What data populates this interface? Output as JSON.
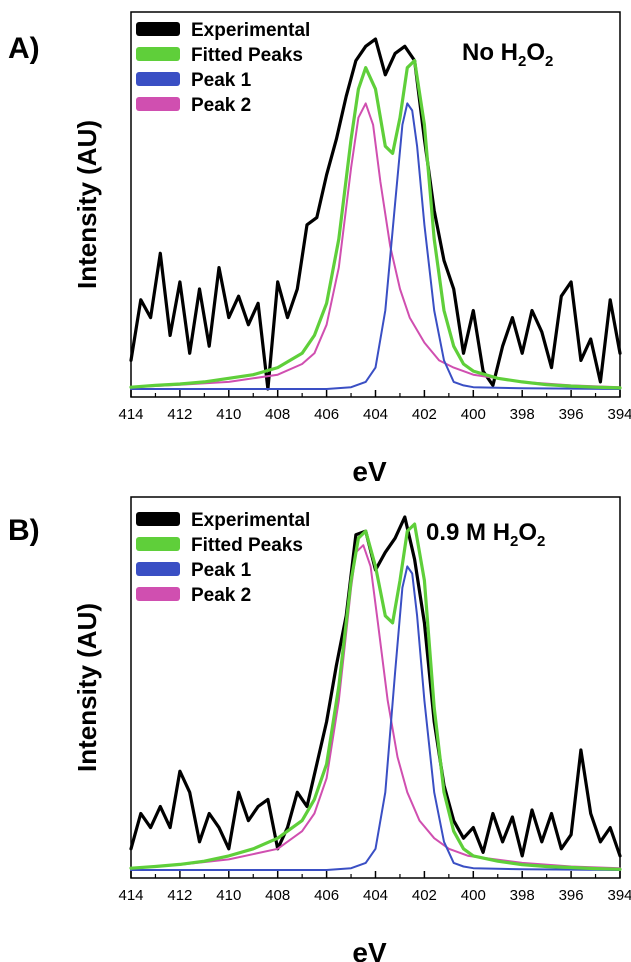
{
  "chart_data": [
    {
      "type": "line",
      "panel_label": "A)",
      "annotation": {
        "prefix": "No H",
        "sub1": "2",
        "mid": "O",
        "sub2": "2"
      },
      "xlabel": "eV",
      "ylabel": "Intensity (AU)",
      "xlim": [
        414,
        394
      ],
      "x_ticks": [
        414,
        412,
        410,
        408,
        406,
        404,
        402,
        400,
        398,
        396,
        394
      ],
      "legend": {
        "placement": "top-left",
        "entries": [
          {
            "label": "Experimental",
            "color": "#000000"
          },
          {
            "label": "Fitted Peaks",
            "color": "#5fcf3a"
          },
          {
            "label": "Peak 1",
            "color": "#3a4fc4"
          },
          {
            "label": "Peak 2",
            "color": "#d04fb0"
          }
        ]
      },
      "series": [
        {
          "name": "Experimental",
          "color": "#000000",
          "x": [
            414.0,
            413.6,
            413.2,
            412.8,
            412.4,
            412.0,
            411.6,
            411.2,
            410.8,
            410.4,
            410.0,
            409.6,
            409.2,
            408.8,
            408.4,
            408.0,
            407.6,
            407.2,
            406.8,
            406.4,
            406.0,
            405.6,
            405.2,
            404.8,
            404.4,
            404.0,
            403.6,
            403.2,
            402.8,
            402.4,
            402.0,
            401.6,
            401.2,
            400.8,
            400.4,
            400.0,
            399.6,
            399.2,
            398.8,
            398.4,
            398.0,
            397.6,
            397.2,
            396.8,
            396.4,
            396.0,
            395.6,
            395.2,
            394.8,
            394.4,
            394.0
          ],
          "y": [
            0.08,
            0.25,
            0.2,
            0.38,
            0.15,
            0.3,
            0.1,
            0.28,
            0.12,
            0.34,
            0.2,
            0.26,
            0.18,
            0.24,
            0.0,
            0.3,
            0.2,
            0.28,
            0.46,
            0.48,
            0.6,
            0.7,
            0.82,
            0.92,
            0.96,
            0.98,
            0.88,
            0.94,
            0.96,
            0.92,
            0.7,
            0.5,
            0.36,
            0.28,
            0.1,
            0.22,
            0.05,
            0.01,
            0.12,
            0.2,
            0.1,
            0.22,
            0.16,
            0.06,
            0.26,
            0.3,
            0.08,
            0.14,
            0.02,
            0.25,
            0.1
          ]
        },
        {
          "name": "Fitted Peaks",
          "color": "#5fcf3a",
          "x": [
            414.0,
            413.0,
            412.0,
            411.0,
            410.0,
            409.0,
            408.0,
            407.0,
            406.5,
            406.0,
            405.5,
            405.0,
            404.7,
            404.4,
            404.0,
            403.6,
            403.3,
            403.0,
            402.7,
            402.4,
            402.0,
            401.6,
            401.2,
            400.8,
            400.4,
            400.0,
            399.0,
            398.0,
            397.0,
            396.0,
            395.0,
            394.0
          ],
          "y": [
            0.005,
            0.01,
            0.014,
            0.02,
            0.03,
            0.04,
            0.06,
            0.1,
            0.15,
            0.24,
            0.42,
            0.7,
            0.84,
            0.9,
            0.84,
            0.68,
            0.66,
            0.76,
            0.9,
            0.92,
            0.74,
            0.42,
            0.22,
            0.12,
            0.07,
            0.05,
            0.03,
            0.02,
            0.012,
            0.008,
            0.005,
            0.003
          ]
        },
        {
          "name": "Peak 1",
          "color": "#3a4fc4",
          "x": [
            414.0,
            410.0,
            406.0,
            405.0,
            404.4,
            404.0,
            403.6,
            403.2,
            402.9,
            402.7,
            402.5,
            402.3,
            402.0,
            401.6,
            401.2,
            400.8,
            400.4,
            400.0,
            398.0,
            396.0,
            394.0
          ],
          "y": [
            0.0,
            0.0,
            0.0,
            0.005,
            0.02,
            0.06,
            0.22,
            0.52,
            0.74,
            0.8,
            0.78,
            0.68,
            0.46,
            0.22,
            0.08,
            0.02,
            0.01,
            0.005,
            0.002,
            0.001,
            0.0
          ]
        },
        {
          "name": "Peak 2",
          "color": "#d04fb0",
          "x": [
            414.0,
            412.0,
            410.0,
            408.0,
            407.0,
            406.5,
            406.0,
            405.5,
            405.0,
            404.7,
            404.4,
            404.1,
            403.8,
            403.4,
            403.0,
            402.6,
            402.0,
            401.4,
            400.8,
            400.0,
            398.0,
            396.0,
            394.0
          ],
          "y": [
            0.005,
            0.012,
            0.02,
            0.04,
            0.07,
            0.1,
            0.18,
            0.34,
            0.62,
            0.76,
            0.8,
            0.74,
            0.58,
            0.4,
            0.28,
            0.2,
            0.13,
            0.08,
            0.06,
            0.04,
            0.02,
            0.01,
            0.005
          ]
        }
      ]
    },
    {
      "type": "line",
      "panel_label": "B)",
      "annotation": {
        "prefix": "0.9 M H",
        "sub1": "2",
        "mid": "O",
        "sub2": "2"
      },
      "xlabel": "eV",
      "ylabel": "Intensity (AU)",
      "xlim": [
        414,
        394
      ],
      "x_ticks": [
        414,
        412,
        410,
        408,
        406,
        404,
        402,
        400,
        398,
        396,
        394
      ],
      "legend": {
        "placement": "top-left",
        "entries": [
          {
            "label": "Experimental",
            "color": "#000000"
          },
          {
            "label": "Fitted Peaks",
            "color": "#5fcf3a"
          },
          {
            "label": "Peak 1",
            "color": "#3a4fc4"
          },
          {
            "label": "Peak 2",
            "color": "#d04fb0"
          }
        ]
      },
      "series": [
        {
          "name": "Experimental",
          "color": "#000000",
          "x": [
            414.0,
            413.6,
            413.2,
            412.8,
            412.4,
            412.0,
            411.6,
            411.2,
            410.8,
            410.4,
            410.0,
            409.6,
            409.2,
            408.8,
            408.4,
            408.0,
            407.6,
            407.2,
            406.8,
            406.4,
            406.0,
            405.6,
            405.2,
            404.8,
            404.4,
            404.0,
            403.6,
            403.2,
            402.8,
            402.4,
            402.0,
            401.6,
            401.2,
            400.8,
            400.4,
            400.0,
            399.6,
            399.2,
            398.8,
            398.4,
            398.0,
            397.6,
            397.2,
            396.8,
            396.4,
            396.0,
            395.6,
            395.2,
            394.8,
            394.4,
            394.0
          ],
          "y": [
            0.06,
            0.16,
            0.12,
            0.18,
            0.12,
            0.28,
            0.22,
            0.08,
            0.16,
            0.12,
            0.06,
            0.22,
            0.14,
            0.18,
            0.2,
            0.06,
            0.12,
            0.22,
            0.18,
            0.3,
            0.42,
            0.58,
            0.72,
            0.95,
            0.96,
            0.85,
            0.9,
            0.94,
            1.0,
            0.88,
            0.7,
            0.42,
            0.24,
            0.14,
            0.09,
            0.12,
            0.05,
            0.16,
            0.08,
            0.15,
            0.04,
            0.17,
            0.08,
            0.16,
            0.06,
            0.1,
            0.34,
            0.16,
            0.08,
            0.12,
            0.04
          ]
        },
        {
          "name": "Fitted Peaks",
          "color": "#5fcf3a",
          "x": [
            414.0,
            413.0,
            412.0,
            411.0,
            410.0,
            409.0,
            408.0,
            407.0,
            406.5,
            406.0,
            405.5,
            405.0,
            404.7,
            404.4,
            404.0,
            403.6,
            403.3,
            403.0,
            402.7,
            402.4,
            402.0,
            401.6,
            401.2,
            400.8,
            400.4,
            400.0,
            399.0,
            398.0,
            397.0,
            396.0,
            395.0,
            394.0
          ],
          "y": [
            0.005,
            0.01,
            0.016,
            0.025,
            0.04,
            0.06,
            0.09,
            0.14,
            0.2,
            0.3,
            0.52,
            0.82,
            0.94,
            0.96,
            0.86,
            0.72,
            0.7,
            0.82,
            0.96,
            0.98,
            0.82,
            0.46,
            0.22,
            0.11,
            0.06,
            0.04,
            0.025,
            0.015,
            0.01,
            0.007,
            0.004,
            0.002
          ]
        },
        {
          "name": "Peak 1",
          "color": "#3a4fc4",
          "x": [
            414.0,
            410.0,
            406.0,
            405.0,
            404.4,
            404.0,
            403.6,
            403.2,
            402.9,
            402.7,
            402.5,
            402.3,
            402.0,
            401.6,
            401.2,
            400.8,
            400.4,
            400.0,
            398.0,
            396.0,
            394.0
          ],
          "y": [
            0.0,
            0.0,
            0.0,
            0.005,
            0.02,
            0.06,
            0.22,
            0.56,
            0.8,
            0.86,
            0.84,
            0.72,
            0.48,
            0.22,
            0.08,
            0.02,
            0.01,
            0.005,
            0.002,
            0.001,
            0.0
          ]
        },
        {
          "name": "Peak 2",
          "color": "#d04fb0",
          "x": [
            414.0,
            412.0,
            410.0,
            408.0,
            407.0,
            406.5,
            406.0,
            405.5,
            405.0,
            404.8,
            404.5,
            404.2,
            403.9,
            403.5,
            403.1,
            402.7,
            402.2,
            401.6,
            401.0,
            400.2,
            398.0,
            396.0,
            394.0
          ],
          "y": [
            0.005,
            0.015,
            0.03,
            0.06,
            0.11,
            0.16,
            0.26,
            0.48,
            0.8,
            0.9,
            0.92,
            0.86,
            0.7,
            0.48,
            0.32,
            0.22,
            0.14,
            0.09,
            0.06,
            0.04,
            0.02,
            0.01,
            0.005
          ]
        }
      ]
    }
  ]
}
